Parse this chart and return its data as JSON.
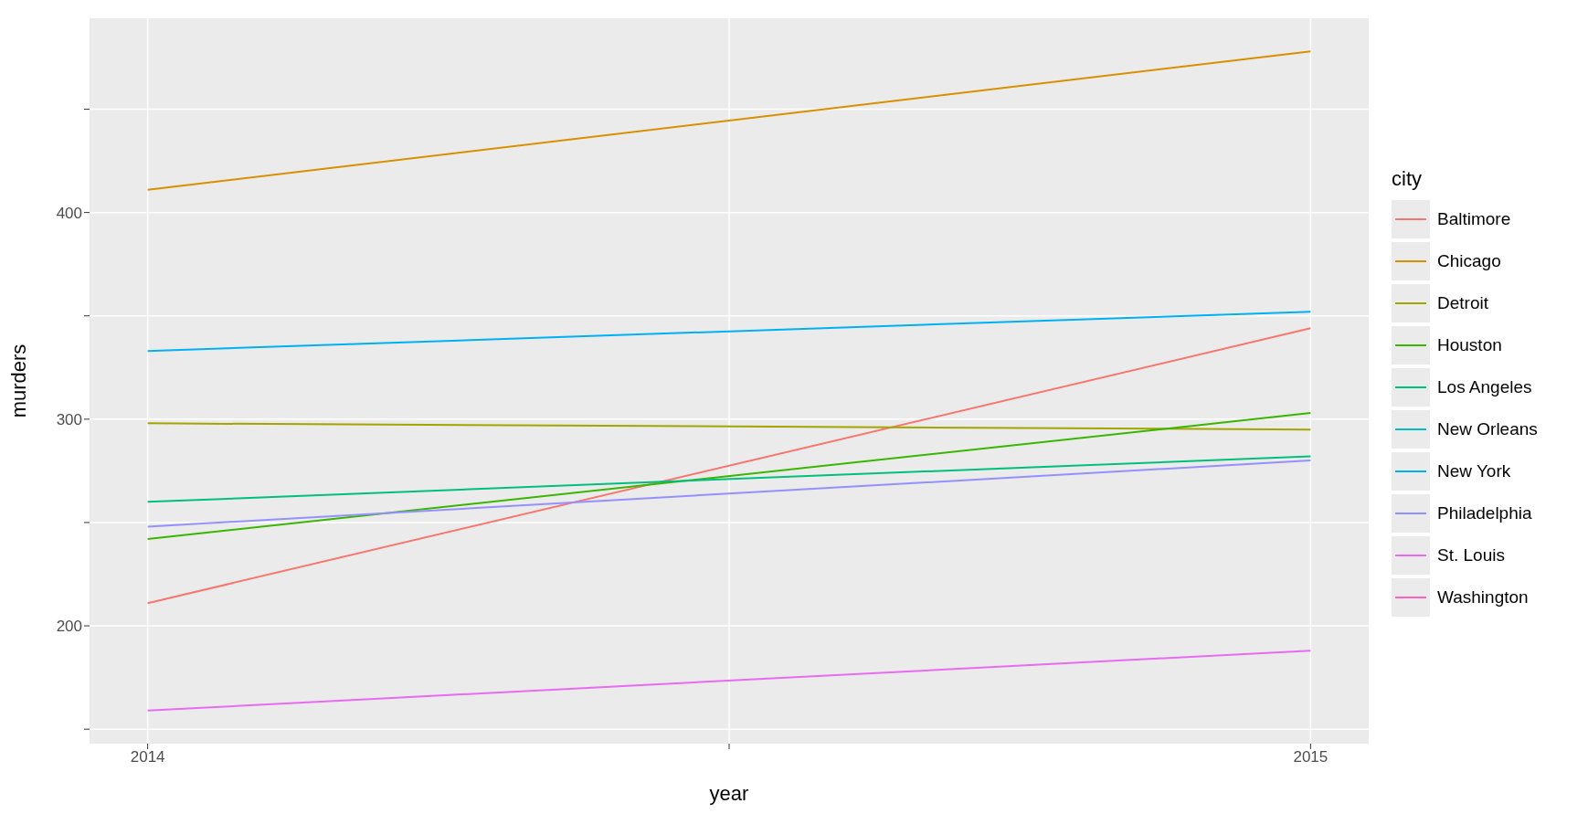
{
  "chart_data": {
    "type": "line",
    "xlabel": "year",
    "ylabel": "murders",
    "legend_title": "city",
    "x": [
      2014,
      2015
    ],
    "xlim": [
      2013.95,
      2015.05
    ],
    "xticks": [
      2014,
      {
        "value": 2014.5,
        "label": null
      },
      2015
    ],
    "ylim": [
      143,
      494
    ],
    "yticks": [
      {
        "value": 150,
        "label": null
      },
      200,
      {
        "value": 250,
        "label": null
      },
      300,
      {
        "value": 350,
        "label": null
      },
      400,
      {
        "value": 450,
        "label": null
      }
    ],
    "grid": true,
    "legend": "right",
    "marker": "none",
    "line_style": "solid",
    "series": [
      {
        "name": "Baltimore",
        "color": "#f8766d",
        "values": [
          211,
          344
        ]
      },
      {
        "name": "Chicago",
        "color": "#d89000",
        "values": [
          411,
          478
        ]
      },
      {
        "name": "Detroit",
        "color": "#a3a500",
        "values": [
          298,
          295
        ]
      },
      {
        "name": "Houston",
        "color": "#39b600",
        "values": [
          242,
          303
        ]
      },
      {
        "name": "Los Angeles",
        "color": "#00bf7d",
        "values": [
          260,
          282
        ]
      },
      {
        "name": "New Orleans",
        "color": "#00bfc4",
        "values": [
          null,
          null
        ]
      },
      {
        "name": "New York",
        "color": "#00b0f6",
        "values": [
          333,
          352
        ]
      },
      {
        "name": "Philadelphia",
        "color": "#9590ff",
        "values": [
          248,
          280
        ]
      },
      {
        "name": "St. Louis",
        "color": "#e76bf3",
        "values": [
          159,
          188
        ]
      },
      {
        "name": "Washington",
        "color": "#ff62bc",
        "values": [
          null,
          null
        ]
      }
    ]
  }
}
